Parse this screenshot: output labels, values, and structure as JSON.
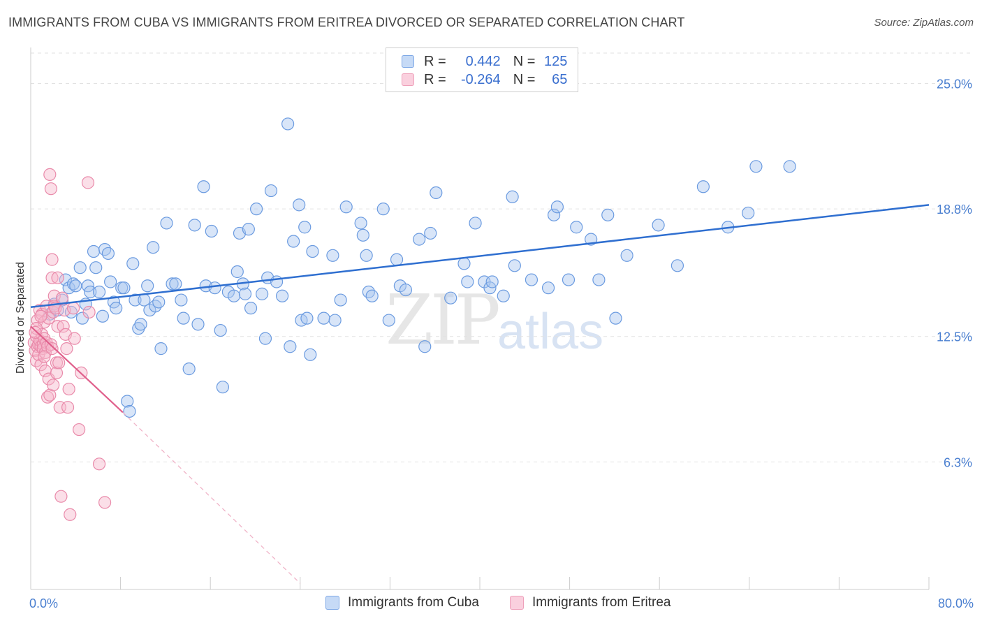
{
  "title": "IMMIGRANTS FROM CUBA VS IMMIGRANTS FROM ERITREA DIVORCED OR SEPARATED CORRELATION CHART",
  "source": "Source: ZipAtlas.com",
  "watermark": {
    "zip": "ZIP",
    "atlas": "atlas"
  },
  "legend": {
    "rows": [
      {
        "r_label": "R =",
        "r_value": "0.442",
        "n_label": "N =",
        "n_value": "125"
      },
      {
        "r_label": "R =",
        "r_value": "-0.264",
        "n_label": "N =",
        "n_value": "65"
      }
    ]
  },
  "bottom_legend": [
    "Immigrants from Cuba",
    "Immigrants from Eritrea"
  ],
  "colors": {
    "cuba_fill": "#a9c6f0",
    "cuba_stroke": "#6b9be0",
    "cuba_line": "#2f6fd0",
    "eritrea_fill": "#f6b8cc",
    "eritrea_stroke": "#e98aaa",
    "eritrea_line": "#e0608c",
    "grid": "#e2e2e2",
    "tick_text": "#4a7fd0"
  },
  "chart_data": {
    "type": "scatter",
    "title": "IMMIGRANTS FROM CUBA VS IMMIGRANTS FROM ERITREA DIVORCED OR SEPARATED CORRELATION CHART",
    "xlabel": "",
    "ylabel": "Divorced or Separated",
    "xlim": [
      0,
      80
    ],
    "ylim": [
      0,
      26.5
    ],
    "x_tick_labels": [
      "0.0%",
      "80.0%"
    ],
    "y_ticks": [
      6.3,
      12.5,
      18.8,
      25.0
    ],
    "y_tick_labels": [
      "6.3%",
      "12.5%",
      "18.8%",
      "25.0%"
    ],
    "grid": true,
    "legend_position": "top-center",
    "series": [
      {
        "name": "Immigrants from Cuba",
        "R": 0.442,
        "N": 125,
        "trend": {
          "x": [
            0,
            80
          ],
          "y": [
            13.95,
            19.0
          ]
        },
        "points": [
          [
            1.7,
            13.6
          ],
          [
            2.1,
            14.1
          ],
          [
            2.4,
            13.8
          ],
          [
            2.8,
            14.3
          ],
          [
            3.1,
            15.3
          ],
          [
            3.4,
            14.9
          ],
          [
            3.6,
            13.7
          ],
          [
            3.8,
            15.1
          ],
          [
            4.0,
            15.0
          ],
          [
            4.4,
            15.9
          ],
          [
            4.6,
            13.4
          ],
          [
            4.9,
            14.1
          ],
          [
            5.1,
            15.0
          ],
          [
            5.3,
            14.7
          ],
          [
            5.6,
            16.7
          ],
          [
            5.8,
            15.9
          ],
          [
            6.1,
            14.7
          ],
          [
            6.4,
            13.5
          ],
          [
            6.6,
            16.8
          ],
          [
            6.9,
            16.6
          ],
          [
            7.1,
            15.2
          ],
          [
            7.4,
            14.2
          ],
          [
            7.6,
            13.9
          ],
          [
            8.1,
            14.9
          ],
          [
            8.3,
            14.9
          ],
          [
            8.6,
            9.3
          ],
          [
            8.8,
            8.8
          ],
          [
            9.1,
            16.1
          ],
          [
            9.3,
            14.3
          ],
          [
            9.6,
            12.9
          ],
          [
            9.8,
            13.1
          ],
          [
            10.1,
            14.3
          ],
          [
            10.4,
            15.0
          ],
          [
            10.6,
            13.8
          ],
          [
            10.9,
            16.9
          ],
          [
            11.1,
            14.0
          ],
          [
            11.4,
            14.2
          ],
          [
            11.6,
            11.9
          ],
          [
            12.1,
            18.1
          ],
          [
            12.6,
            15.1
          ],
          [
            12.9,
            15.1
          ],
          [
            13.4,
            14.3
          ],
          [
            13.6,
            13.4
          ],
          [
            14.1,
            10.9
          ],
          [
            14.6,
            18.0
          ],
          [
            14.9,
            13.1
          ],
          [
            15.4,
            19.9
          ],
          [
            15.6,
            15.0
          ],
          [
            16.1,
            17.7
          ],
          [
            16.4,
            14.9
          ],
          [
            16.9,
            12.8
          ],
          [
            17.1,
            10.0
          ],
          [
            17.6,
            14.7
          ],
          [
            18.1,
            14.5
          ],
          [
            18.4,
            15.7
          ],
          [
            18.6,
            17.6
          ],
          [
            18.9,
            15.1
          ],
          [
            19.1,
            14.6
          ],
          [
            19.4,
            17.8
          ],
          [
            19.6,
            13.9
          ],
          [
            20.1,
            18.8
          ],
          [
            20.6,
            14.6
          ],
          [
            20.9,
            12.4
          ],
          [
            21.1,
            15.4
          ],
          [
            21.4,
            19.7
          ],
          [
            21.9,
            15.2
          ],
          [
            22.4,
            14.5
          ],
          [
            22.9,
            23.0
          ],
          [
            23.1,
            12.0
          ],
          [
            23.4,
            17.2
          ],
          [
            23.9,
            19.0
          ],
          [
            24.1,
            13.3
          ],
          [
            24.4,
            17.9
          ],
          [
            24.6,
            13.4
          ],
          [
            24.9,
            11.6
          ],
          [
            25.1,
            16.7
          ],
          [
            26.1,
            13.4
          ],
          [
            26.9,
            16.5
          ],
          [
            27.1,
            13.3
          ],
          [
            27.6,
            14.3
          ],
          [
            28.1,
            18.9
          ],
          [
            29.4,
            18.1
          ],
          [
            29.6,
            17.5
          ],
          [
            29.9,
            16.5
          ],
          [
            30.1,
            14.7
          ],
          [
            30.4,
            14.5
          ],
          [
            31.4,
            18.8
          ],
          [
            31.9,
            13.3
          ],
          [
            32.6,
            16.3
          ],
          [
            32.9,
            15.0
          ],
          [
            33.4,
            14.8
          ],
          [
            34.6,
            17.3
          ],
          [
            35.1,
            12.0
          ],
          [
            35.6,
            17.6
          ],
          [
            36.1,
            19.6
          ],
          [
            37.4,
            14.4
          ],
          [
            38.6,
            16.1
          ],
          [
            38.9,
            15.2
          ],
          [
            39.6,
            18.1
          ],
          [
            40.4,
            15.2
          ],
          [
            40.9,
            14.9
          ],
          [
            41.1,
            15.2
          ],
          [
            42.1,
            14.5
          ],
          [
            42.9,
            19.4
          ],
          [
            43.1,
            16.0
          ],
          [
            44.6,
            15.3
          ],
          [
            46.1,
            14.9
          ],
          [
            46.6,
            18.5
          ],
          [
            46.9,
            18.9
          ],
          [
            47.9,
            15.3
          ],
          [
            48.6,
            17.9
          ],
          [
            49.9,
            17.3
          ],
          [
            50.6,
            15.3
          ],
          [
            51.4,
            18.5
          ],
          [
            52.1,
            13.4
          ],
          [
            53.1,
            16.5
          ],
          [
            57.6,
            16.0
          ],
          [
            59.9,
            19.9
          ],
          [
            62.1,
            17.9
          ],
          [
            63.9,
            18.6
          ],
          [
            64.6,
            20.9
          ],
          [
            67.6,
            20.9
          ],
          [
            55.9,
            18.0
          ]
        ]
      },
      {
        "name": "Immigrants from Eritrea",
        "R": -0.264,
        "N": 65,
        "trend": {
          "x": [
            0,
            8.2
          ],
          "y": [
            13.0,
            8.75
          ]
        },
        "trend_dashed_extension": {
          "x": [
            8.2,
            24.0
          ],
          "y": [
            8.75,
            0.3
          ]
        },
        "points": [
          [
            0.3,
            12.2
          ],
          [
            0.4,
            11.8
          ],
          [
            0.5,
            12.5
          ],
          [
            0.5,
            11.3
          ],
          [
            0.6,
            12.0
          ],
          [
            0.6,
            13.3
          ],
          [
            0.7,
            12.1
          ],
          [
            0.7,
            11.6
          ],
          [
            0.8,
            13.8
          ],
          [
            0.8,
            12.3
          ],
          [
            0.9,
            12.0
          ],
          [
            0.9,
            11.1
          ],
          [
            1.0,
            13.6
          ],
          [
            1.0,
            12.6
          ],
          [
            1.1,
            12.1
          ],
          [
            1.1,
            11.9
          ],
          [
            1.2,
            13.2
          ],
          [
            1.2,
            12.4
          ],
          [
            1.3,
            11.7
          ],
          [
            1.3,
            10.8
          ],
          [
            1.4,
            14.0
          ],
          [
            1.4,
            12.2
          ],
          [
            1.5,
            9.5
          ],
          [
            1.5,
            12.0
          ],
          [
            1.6,
            13.4
          ],
          [
            1.6,
            10.4
          ],
          [
            1.7,
            9.6
          ],
          [
            1.7,
            20.5
          ],
          [
            1.8,
            12.1
          ],
          [
            1.8,
            19.8
          ],
          [
            1.9,
            15.4
          ],
          [
            1.9,
            16.3
          ],
          [
            2.0,
            13.7
          ],
          [
            2.0,
            10.1
          ],
          [
            2.1,
            14.5
          ],
          [
            2.1,
            14.0
          ],
          [
            2.2,
            13.9
          ],
          [
            2.3,
            11.2
          ],
          [
            2.3,
            10.7
          ],
          [
            2.4,
            13.0
          ],
          [
            2.4,
            15.4
          ],
          [
            2.5,
            11.2
          ],
          [
            2.6,
            9.0
          ],
          [
            2.7,
            4.6
          ],
          [
            2.8,
            14.4
          ],
          [
            2.9,
            13.0
          ],
          [
            3.0,
            13.8
          ],
          [
            3.1,
            12.6
          ],
          [
            3.2,
            11.9
          ],
          [
            3.3,
            9.0
          ],
          [
            3.4,
            9.9
          ],
          [
            3.5,
            3.7
          ],
          [
            3.8,
            13.9
          ],
          [
            3.9,
            12.4
          ],
          [
            4.3,
            7.9
          ],
          [
            4.5,
            10.7
          ],
          [
            5.1,
            20.1
          ],
          [
            5.2,
            13.7
          ],
          [
            6.1,
            6.2
          ],
          [
            6.6,
            4.3
          ],
          [
            0.5,
            12.9
          ],
          [
            0.9,
            13.5
          ],
          [
            1.2,
            11.5
          ],
          [
            0.4,
            12.7
          ],
          [
            1.9,
            11.9
          ]
        ]
      }
    ]
  }
}
